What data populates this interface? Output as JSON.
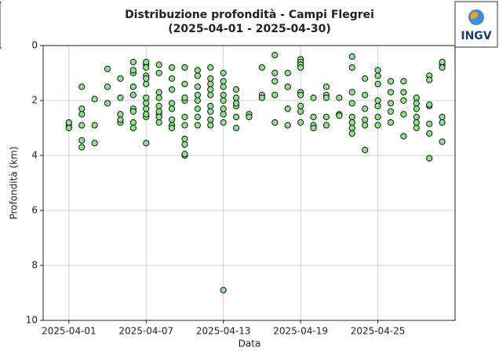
{
  "logo": "INGV",
  "chart_data": {
    "type": "scatter",
    "title": "Distribuzione profondità - Campi Flegrei",
    "subtitle": "(2025-04-01 - 2025-04-30)",
    "x_label": "Data",
    "y_label": "Profondità (km)",
    "xlim": [
      "2025-03-30",
      "2025-05-01"
    ],
    "xticks": [
      "2025-04-01",
      "2025-04-07",
      "2025-04-13",
      "2025-04-19",
      "2025-04-25"
    ],
    "ylim": [
      10,
      0
    ],
    "yticks": [
      0,
      2,
      4,
      6,
      8,
      10
    ],
    "grid": true,
    "color": "#90e28c",
    "x": [
      "2025-04-01",
      "2025-04-01",
      "2025-04-01",
      "2025-04-02",
      "2025-04-02",
      "2025-04-02",
      "2025-04-02",
      "2025-04-02",
      "2025-04-02",
      "2025-04-03",
      "2025-04-03",
      "2025-04-03",
      "2025-04-04",
      "2025-04-04",
      "2025-04-04",
      "2025-04-05",
      "2025-04-05",
      "2025-04-05",
      "2025-04-05",
      "2025-04-05",
      "2025-04-06",
      "2025-04-06",
      "2025-04-06",
      "2025-04-06",
      "2025-04-06",
      "2025-04-06",
      "2025-04-06",
      "2025-04-06",
      "2025-04-06",
      "2025-04-07",
      "2025-04-07",
      "2025-04-07",
      "2025-04-07",
      "2025-04-07",
      "2025-04-07",
      "2025-04-07",
      "2025-04-07",
      "2025-04-07",
      "2025-04-07",
      "2025-04-07",
      "2025-04-07",
      "2025-04-08",
      "2025-04-08",
      "2025-04-08",
      "2025-04-08",
      "2025-04-08",
      "2025-04-08",
      "2025-04-08",
      "2025-04-08",
      "2025-04-08",
      "2025-04-09",
      "2025-04-09",
      "2025-04-09",
      "2025-04-09",
      "2025-04-09",
      "2025-04-09",
      "2025-04-09",
      "2025-04-09",
      "2025-04-10",
      "2025-04-10",
      "2025-04-10",
      "2025-04-10",
      "2025-04-10",
      "2025-04-10",
      "2025-04-10",
      "2025-04-10",
      "2025-04-10",
      "2025-04-10",
      "2025-04-11",
      "2025-04-11",
      "2025-04-11",
      "2025-04-11",
      "2025-04-11",
      "2025-04-11",
      "2025-04-11",
      "2025-04-11",
      "2025-04-12",
      "2025-04-12",
      "2025-04-12",
      "2025-04-12",
      "2025-04-12",
      "2025-04-12",
      "2025-04-12",
      "2025-04-12",
      "2025-04-12",
      "2025-04-13",
      "2025-04-13",
      "2025-04-13",
      "2025-04-13",
      "2025-04-13",
      "2025-04-13",
      "2025-04-13",
      "2025-04-13",
      "2025-04-13",
      "2025-04-14",
      "2025-04-14",
      "2025-04-14",
      "2025-04-14",
      "2025-04-14",
      "2025-04-14",
      "2025-04-15",
      "2025-04-15",
      "2025-04-16",
      "2025-04-16",
      "2025-04-16",
      "2025-04-17",
      "2025-04-17",
      "2025-04-17",
      "2025-04-17",
      "2025-04-17",
      "2025-04-18",
      "2025-04-18",
      "2025-04-18",
      "2025-04-18",
      "2025-04-19",
      "2025-04-19",
      "2025-04-19",
      "2025-04-19",
      "2025-04-19",
      "2025-04-19",
      "2025-04-19",
      "2025-04-19",
      "2025-04-19",
      "2025-04-20",
      "2025-04-20",
      "2025-04-20",
      "2025-04-20",
      "2025-04-21",
      "2025-04-21",
      "2025-04-21",
      "2025-04-21",
      "2025-04-21",
      "2025-04-22",
      "2025-04-22",
      "2025-04-22",
      "2025-04-23",
      "2025-04-23",
      "2025-04-23",
      "2025-04-23",
      "2025-04-23",
      "2025-04-23",
      "2025-04-23",
      "2025-04-23",
      "2025-04-24",
      "2025-04-24",
      "2025-04-24",
      "2025-04-24",
      "2025-04-24",
      "2025-04-24",
      "2025-04-25",
      "2025-04-25",
      "2025-04-25",
      "2025-04-25",
      "2025-04-25",
      "2025-04-25",
      "2025-04-25",
      "2025-04-26",
      "2025-04-26",
      "2025-04-26",
      "2025-04-26",
      "2025-04-26",
      "2025-04-27",
      "2025-04-27",
      "2025-04-27",
      "2025-04-27",
      "2025-04-27",
      "2025-04-28",
      "2025-04-28",
      "2025-04-28",
      "2025-04-28",
      "2025-04-28",
      "2025-04-28",
      "2025-04-29",
      "2025-04-29",
      "2025-04-29",
      "2025-04-29",
      "2025-04-29",
      "2025-04-29",
      "2025-04-29",
      "2025-04-30",
      "2025-04-30",
      "2025-04-30",
      "2025-04-30",
      "2025-04-30",
      "2025-04-30"
    ],
    "values": [
      2.9,
      3.0,
      2.8,
      2.5,
      2.3,
      3.7,
      2.9,
      1.5,
      3.45,
      1.95,
      2.9,
      3.55,
      0.85,
      2.1,
      1.5,
      2.8,
      2.5,
      1.2,
      1.9,
      2.7,
      0.6,
      1.0,
      1.5,
      2.3,
      2.8,
      0.9,
      1.8,
      2.4,
      3.0,
      3.55,
      2.1,
      1.1,
      0.7,
      0.6,
      1.4,
      2.6,
      1.9,
      2.3,
      0.8,
      2.5,
      1.2,
      0.7,
      1.7,
      2.2,
      2.5,
      2.8,
      2.6,
      1.9,
      1.0,
      2.4,
      1.6,
      2.1,
      2.7,
      2.9,
      1.2,
      0.8,
      3.0,
      2.3,
      0.8,
      1.4,
      2.0,
      2.6,
      3.4,
      3.6,
      4.0,
      3.95,
      2.9,
      1.9,
      0.9,
      1.5,
      1.8,
      2.3,
      2.9,
      1.1,
      2.0,
      2.6,
      1.4,
      1.8,
      2.2,
      2.7,
      0.8,
      1.2,
      1.6,
      2.4,
      2.9,
      1.0,
      1.5,
      2.0,
      2.5,
      8.9,
      1.8,
      2.3,
      2.8,
      1.3,
      1.9,
      2.2,
      2.6,
      3.0,
      1.6,
      2.1,
      2.5,
      2.6,
      0.8,
      1.8,
      1.9,
      0.35,
      1.0,
      1.8,
      2.8,
      1.3,
      1.0,
      2.3,
      2.9,
      1.5,
      0.5,
      0.6,
      0.7,
      0.8,
      1.7,
      2.2,
      2.4,
      2.8,
      1.8,
      1.9,
      2.9,
      3.0,
      2.6,
      1.5,
      1.8,
      2.6,
      2.9,
      1.9,
      2.5,
      1.9,
      2.55,
      0.4,
      0.8,
      1.7,
      2.1,
      2.6,
      3.0,
      3.2,
      2.8,
      1.2,
      1.8,
      2.3,
      3.8,
      2.7,
      2.9,
      0.9,
      1.4,
      2.0,
      2.6,
      2.9,
      1.1,
      2.2,
      1.3,
      1.7,
      2.1,
      2.4,
      2.8,
      1.7,
      2.0,
      2.5,
      3.3,
      1.3,
      1.9,
      2.3,
      2.6,
      3.0,
      2.1,
      2.8,
      1.1,
      2.2,
      2.85,
      3.2,
      1.25,
      4.1,
      2.15,
      0.7,
      0.6,
      2.6,
      2.8,
      3.5,
      0.8
    ]
  }
}
